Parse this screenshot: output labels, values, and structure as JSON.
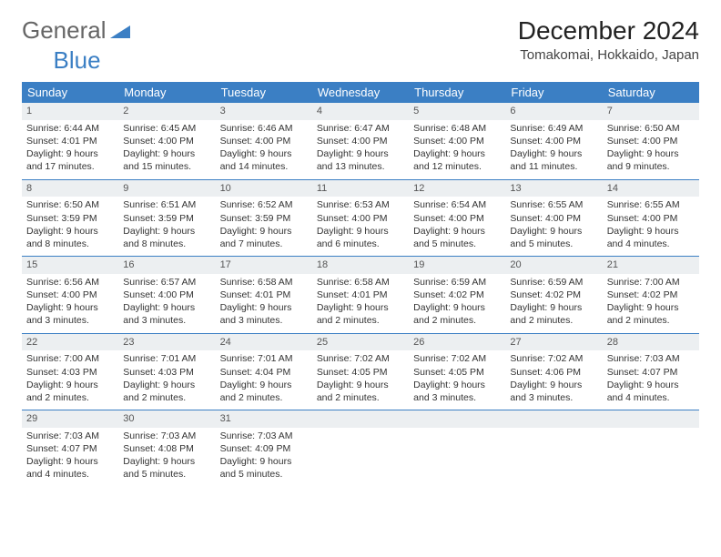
{
  "logo": {
    "text_gray": "General",
    "text_blue": "Blue"
  },
  "title": "December 2024",
  "location": "Tomakomai, Hokkaido, Japan",
  "colors": {
    "header_bg": "#3b7fc4",
    "header_text": "#ffffff",
    "daynum_bg": "#eceff1",
    "week_border": "#3b7fc4",
    "page_bg": "#ffffff",
    "text": "#333333"
  },
  "layout": {
    "columns": 7,
    "rows": 5,
    "cell_font_size_pt": 8,
    "title_font_size_pt": 21
  },
  "day_names": [
    "Sunday",
    "Monday",
    "Tuesday",
    "Wednesday",
    "Thursday",
    "Friday",
    "Saturday"
  ],
  "weeks": [
    [
      {
        "n": "1",
        "sr": "6:44 AM",
        "ss": "4:01 PM",
        "dl": "9 hours and 17 minutes."
      },
      {
        "n": "2",
        "sr": "6:45 AM",
        "ss": "4:00 PM",
        "dl": "9 hours and 15 minutes."
      },
      {
        "n": "3",
        "sr": "6:46 AM",
        "ss": "4:00 PM",
        "dl": "9 hours and 14 minutes."
      },
      {
        "n": "4",
        "sr": "6:47 AM",
        "ss": "4:00 PM",
        "dl": "9 hours and 13 minutes."
      },
      {
        "n": "5",
        "sr": "6:48 AM",
        "ss": "4:00 PM",
        "dl": "9 hours and 12 minutes."
      },
      {
        "n": "6",
        "sr": "6:49 AM",
        "ss": "4:00 PM",
        "dl": "9 hours and 11 minutes."
      },
      {
        "n": "7",
        "sr": "6:50 AM",
        "ss": "4:00 PM",
        "dl": "9 hours and 9 minutes."
      }
    ],
    [
      {
        "n": "8",
        "sr": "6:50 AM",
        "ss": "3:59 PM",
        "dl": "9 hours and 8 minutes."
      },
      {
        "n": "9",
        "sr": "6:51 AM",
        "ss": "3:59 PM",
        "dl": "9 hours and 8 minutes."
      },
      {
        "n": "10",
        "sr": "6:52 AM",
        "ss": "3:59 PM",
        "dl": "9 hours and 7 minutes."
      },
      {
        "n": "11",
        "sr": "6:53 AM",
        "ss": "4:00 PM",
        "dl": "9 hours and 6 minutes."
      },
      {
        "n": "12",
        "sr": "6:54 AM",
        "ss": "4:00 PM",
        "dl": "9 hours and 5 minutes."
      },
      {
        "n": "13",
        "sr": "6:55 AM",
        "ss": "4:00 PM",
        "dl": "9 hours and 5 minutes."
      },
      {
        "n": "14",
        "sr": "6:55 AM",
        "ss": "4:00 PM",
        "dl": "9 hours and 4 minutes."
      }
    ],
    [
      {
        "n": "15",
        "sr": "6:56 AM",
        "ss": "4:00 PM",
        "dl": "9 hours and 3 minutes."
      },
      {
        "n": "16",
        "sr": "6:57 AM",
        "ss": "4:00 PM",
        "dl": "9 hours and 3 minutes."
      },
      {
        "n": "17",
        "sr": "6:58 AM",
        "ss": "4:01 PM",
        "dl": "9 hours and 3 minutes."
      },
      {
        "n": "18",
        "sr": "6:58 AM",
        "ss": "4:01 PM",
        "dl": "9 hours and 2 minutes."
      },
      {
        "n": "19",
        "sr": "6:59 AM",
        "ss": "4:02 PM",
        "dl": "9 hours and 2 minutes."
      },
      {
        "n": "20",
        "sr": "6:59 AM",
        "ss": "4:02 PM",
        "dl": "9 hours and 2 minutes."
      },
      {
        "n": "21",
        "sr": "7:00 AM",
        "ss": "4:02 PM",
        "dl": "9 hours and 2 minutes."
      }
    ],
    [
      {
        "n": "22",
        "sr": "7:00 AM",
        "ss": "4:03 PM",
        "dl": "9 hours and 2 minutes."
      },
      {
        "n": "23",
        "sr": "7:01 AM",
        "ss": "4:03 PM",
        "dl": "9 hours and 2 minutes."
      },
      {
        "n": "24",
        "sr": "7:01 AM",
        "ss": "4:04 PM",
        "dl": "9 hours and 2 minutes."
      },
      {
        "n": "25",
        "sr": "7:02 AM",
        "ss": "4:05 PM",
        "dl": "9 hours and 2 minutes."
      },
      {
        "n": "26",
        "sr": "7:02 AM",
        "ss": "4:05 PM",
        "dl": "9 hours and 3 minutes."
      },
      {
        "n": "27",
        "sr": "7:02 AM",
        "ss": "4:06 PM",
        "dl": "9 hours and 3 minutes."
      },
      {
        "n": "28",
        "sr": "7:03 AM",
        "ss": "4:07 PM",
        "dl": "9 hours and 4 minutes."
      }
    ],
    [
      {
        "n": "29",
        "sr": "7:03 AM",
        "ss": "4:07 PM",
        "dl": "9 hours and 4 minutes."
      },
      {
        "n": "30",
        "sr": "7:03 AM",
        "ss": "4:08 PM",
        "dl": "9 hours and 5 minutes."
      },
      {
        "n": "31",
        "sr": "7:03 AM",
        "ss": "4:09 PM",
        "dl": "9 hours and 5 minutes."
      },
      null,
      null,
      null,
      null
    ]
  ],
  "labels": {
    "sunrise": "Sunrise:",
    "sunset": "Sunset:",
    "daylight": "Daylight:"
  }
}
